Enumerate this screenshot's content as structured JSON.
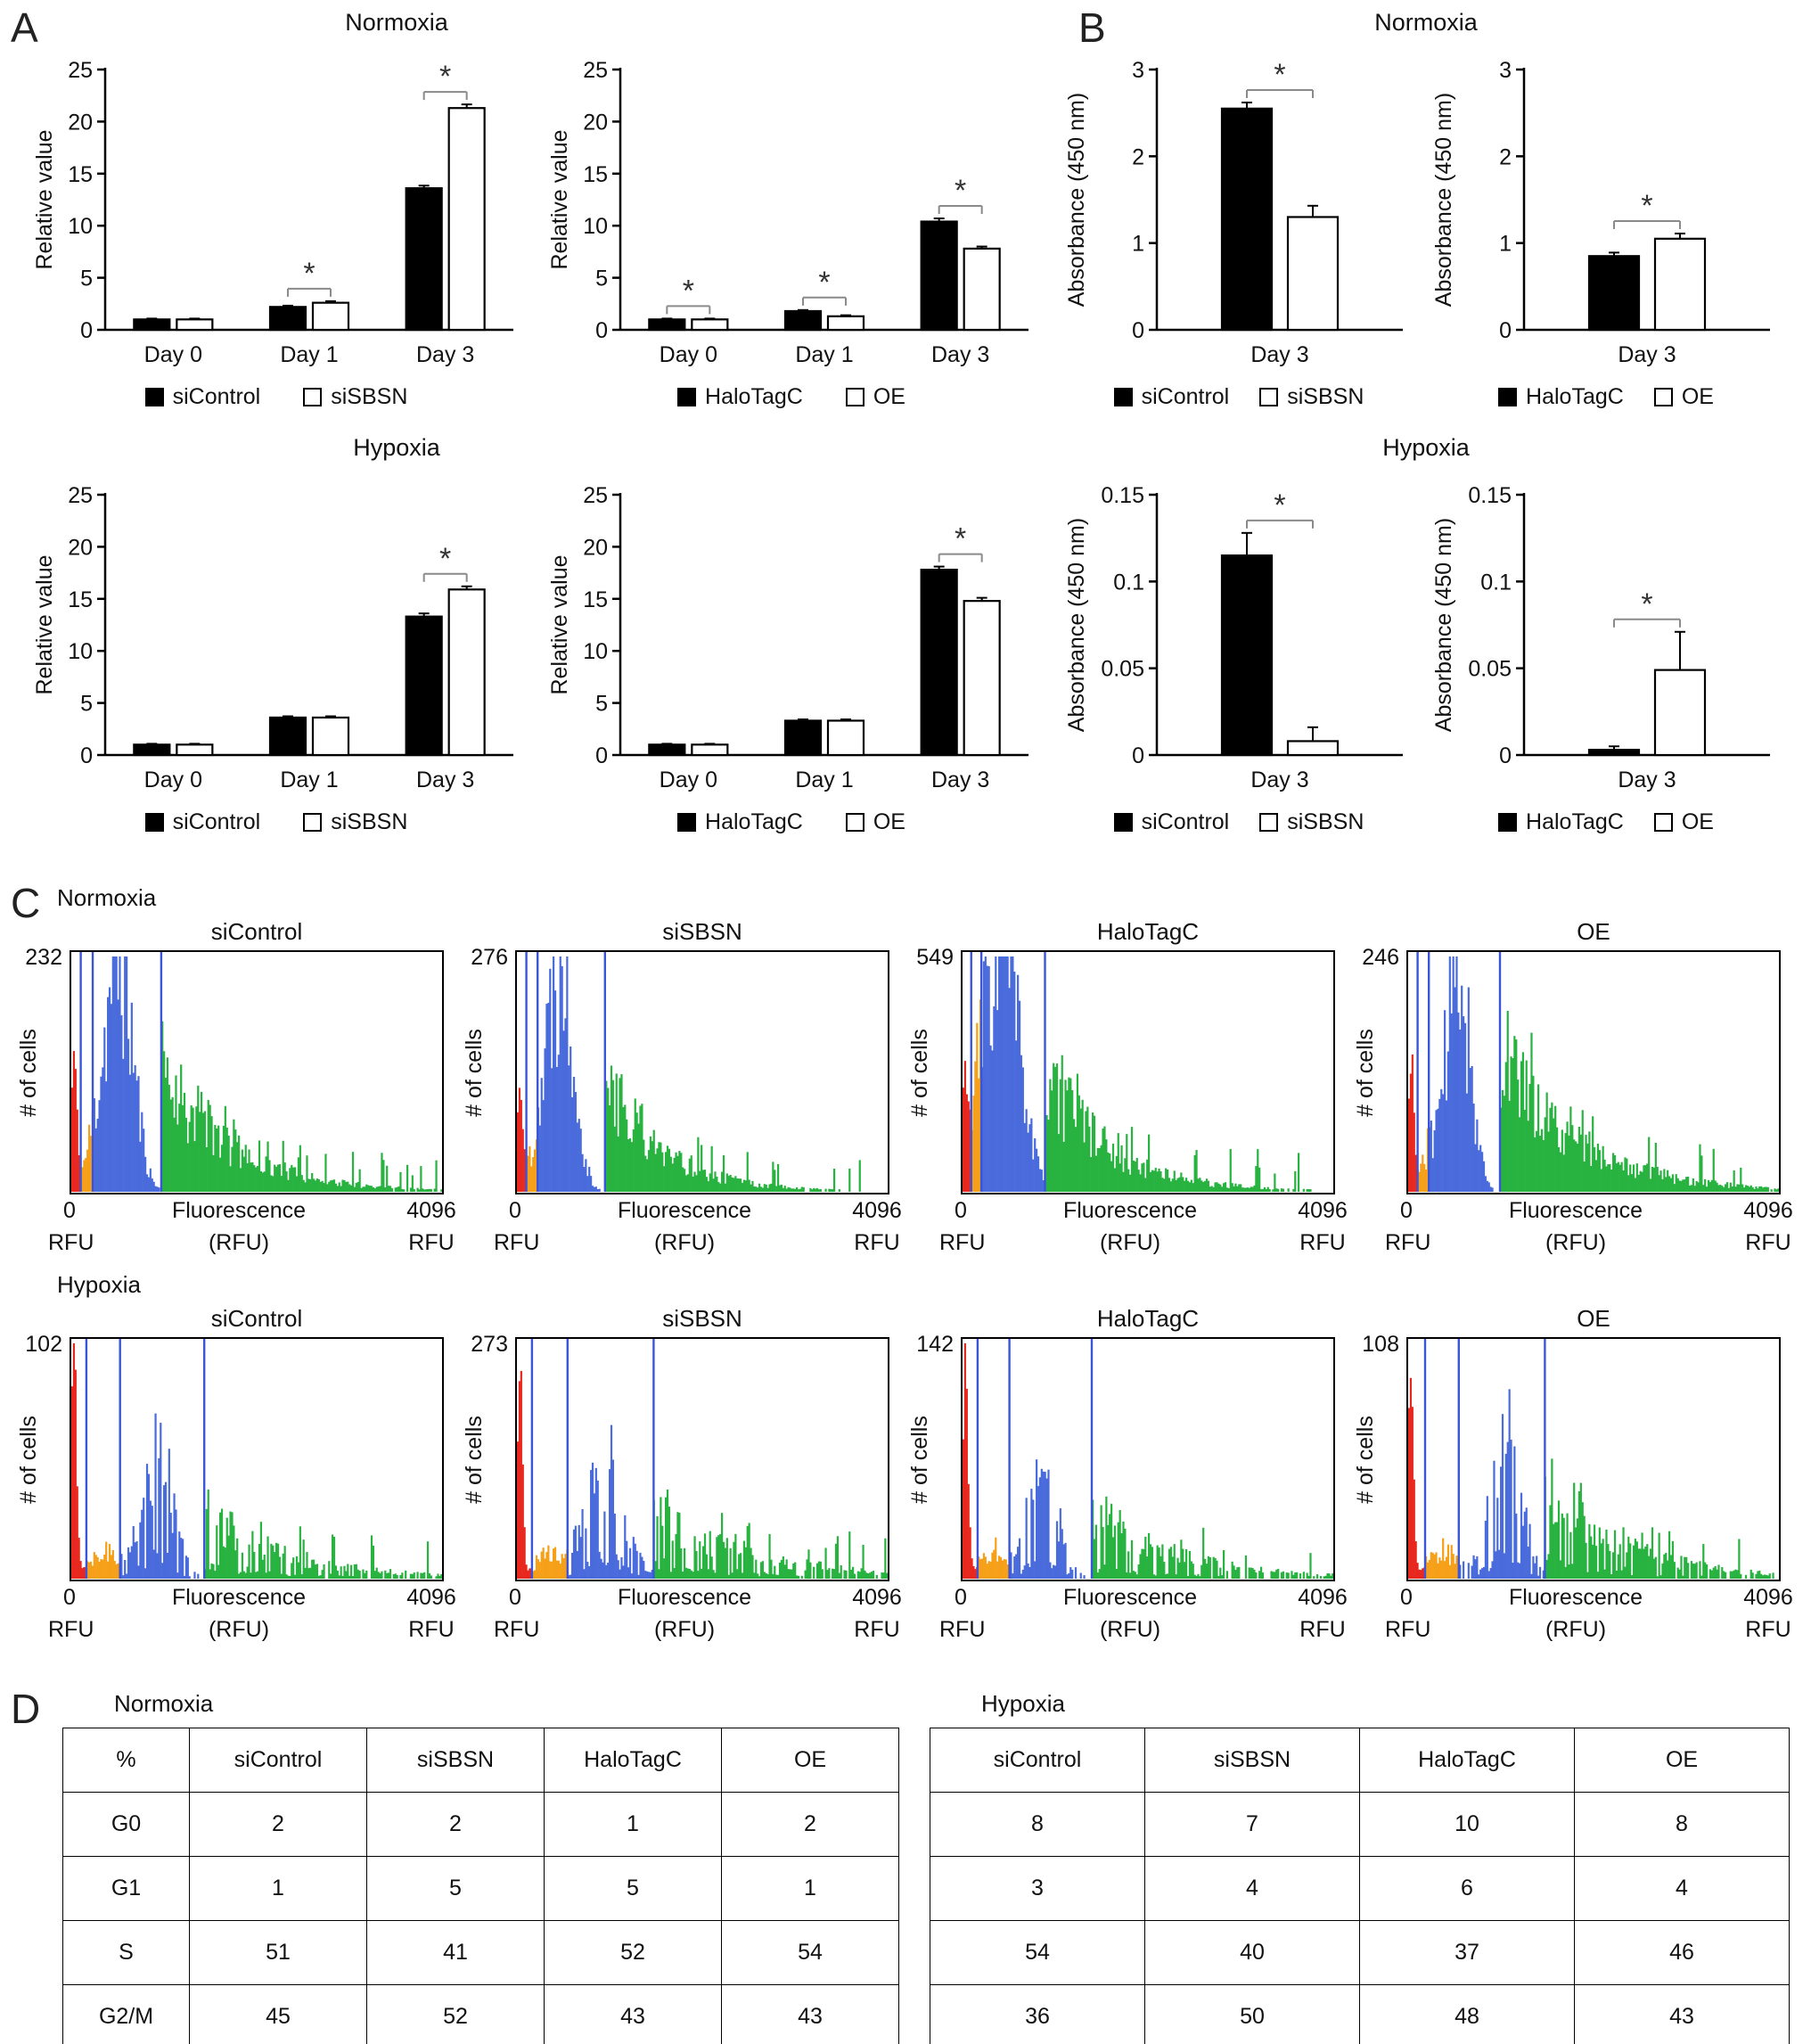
{
  "labels": {
    "panel_a": "A",
    "panel_b": "B",
    "panel_c": "C",
    "panel_d": "D",
    "normoxia": "Normoxia",
    "hypoxia": "Hypoxia"
  },
  "colors": {
    "bar_black": "#000000",
    "bar_white": "#ffffff",
    "hist_red": "#e8281e",
    "hist_orange": "#f6a01a",
    "hist_blue": "#4a6bdc",
    "hist_green": "#28b240",
    "gate_line": "#3a55d9",
    "sig_bracket": "#8a8a8a",
    "sig_star": "#333333"
  },
  "chart_data": [
    {
      "id": "a-normoxia-si",
      "type": "bar",
      "panel": "A",
      "condition": "Normoxia",
      "ylabel": "Relative value",
      "ylim": [
        0,
        25
      ],
      "yticks": [
        0,
        5,
        10,
        15,
        20,
        25
      ],
      "categories": [
        "Day 0",
        "Day 1",
        "Day 3"
      ],
      "series": [
        {
          "name": "siControl",
          "fill": "#000000",
          "values": [
            1.0,
            2.2,
            13.6
          ],
          "errors": [
            0.08,
            0.12,
            0.25
          ]
        },
        {
          "name": "siSBSN",
          "fill": "#ffffff",
          "values": [
            1.0,
            2.6,
            21.3
          ],
          "errors": [
            0.08,
            0.15,
            0.35
          ]
        }
      ],
      "sig": [
        1,
        2
      ]
    },
    {
      "id": "a-normoxia-halo",
      "type": "bar",
      "panel": "A",
      "condition": "Normoxia",
      "ylabel": "Relative value",
      "ylim": [
        0,
        25
      ],
      "yticks": [
        0,
        5,
        10,
        15,
        20,
        25
      ],
      "categories": [
        "Day 0",
        "Day 1",
        "Day 3"
      ],
      "series": [
        {
          "name": "HaloTagC",
          "fill": "#000000",
          "values": [
            1.0,
            1.8,
            10.4
          ],
          "errors": [
            0.08,
            0.1,
            0.3
          ]
        },
        {
          "name": "OE",
          "fill": "#ffffff",
          "values": [
            1.0,
            1.3,
            7.8
          ],
          "errors": [
            0.08,
            0.1,
            0.2
          ]
        }
      ],
      "sig": [
        0,
        1,
        2
      ]
    },
    {
      "id": "a-hypoxia-si",
      "type": "bar",
      "panel": "A",
      "condition": "Hypoxia",
      "ylabel": "Relative value",
      "ylim": [
        0,
        25
      ],
      "yticks": [
        0,
        5,
        10,
        15,
        20,
        25
      ],
      "categories": [
        "Day 0",
        "Day 1",
        "Day 3"
      ],
      "series": [
        {
          "name": "siControl",
          "fill": "#000000",
          "values": [
            1.0,
            3.6,
            13.3
          ],
          "errors": [
            0.08,
            0.12,
            0.3
          ]
        },
        {
          "name": "siSBSN",
          "fill": "#ffffff",
          "values": [
            1.0,
            3.6,
            15.9
          ],
          "errors": [
            0.08,
            0.12,
            0.3
          ]
        }
      ],
      "sig": [
        2
      ]
    },
    {
      "id": "a-hypoxia-halo",
      "type": "bar",
      "panel": "A",
      "condition": "Hypoxia",
      "ylabel": "Relative value",
      "ylim": [
        0,
        25
      ],
      "yticks": [
        0,
        5,
        10,
        15,
        20,
        25
      ],
      "categories": [
        "Day 0",
        "Day 1",
        "Day 3"
      ],
      "series": [
        {
          "name": "HaloTagC",
          "fill": "#000000",
          "values": [
            1.0,
            3.3,
            17.8
          ],
          "errors": [
            0.08,
            0.12,
            0.3
          ]
        },
        {
          "name": "OE",
          "fill": "#ffffff",
          "values": [
            1.0,
            3.3,
            14.8
          ],
          "errors": [
            0.08,
            0.12,
            0.3
          ]
        }
      ],
      "sig": [
        2
      ]
    },
    {
      "id": "b-normoxia-si",
      "type": "bar",
      "panel": "B",
      "condition": "Normoxia",
      "ylabel": "Absorbance (450 nm)",
      "ylim": [
        0,
        3
      ],
      "yticks": [
        0,
        1,
        2,
        3
      ],
      "ytick_labels": [
        "0",
        "1",
        "2",
        "3"
      ],
      "categories": [
        "Day 3"
      ],
      "series": [
        {
          "name": "siControl",
          "fill": "#000000",
          "values": [
            2.55
          ],
          "errors": [
            0.07
          ]
        },
        {
          "name": "siSBSN",
          "fill": "#ffffff",
          "values": [
            1.3
          ],
          "errors": [
            0.13
          ]
        }
      ],
      "sig": [
        0
      ]
    },
    {
      "id": "b-normoxia-halo",
      "type": "bar",
      "panel": "B",
      "condition": "Normoxia",
      "ylabel": "Absorbance (450 nm)",
      "ylim": [
        0,
        3
      ],
      "yticks": [
        0,
        1,
        2,
        3
      ],
      "ytick_labels": [
        "0",
        "1",
        "2",
        "3"
      ],
      "categories": [
        "Day 3"
      ],
      "series": [
        {
          "name": "HaloTagC",
          "fill": "#000000",
          "values": [
            0.85
          ],
          "errors": [
            0.04
          ]
        },
        {
          "name": "OE",
          "fill": "#ffffff",
          "values": [
            1.05
          ],
          "errors": [
            0.06
          ]
        }
      ],
      "sig": [
        0
      ]
    },
    {
      "id": "b-hypoxia-si",
      "type": "bar",
      "panel": "B",
      "condition": "Hypoxia",
      "ylabel": "Absorbance (450 nm)",
      "ylim": [
        0,
        0.15
      ],
      "yticks": [
        0,
        0.05,
        0.1,
        0.15
      ],
      "ytick_labels": [
        "0",
        "0.05",
        "0.1",
        "0.15"
      ],
      "categories": [
        "Day 3"
      ],
      "series": [
        {
          "name": "siControl",
          "fill": "#000000",
          "values": [
            0.115
          ],
          "errors": [
            0.013
          ]
        },
        {
          "name": "siSBSN",
          "fill": "#ffffff",
          "values": [
            0.008
          ],
          "errors": [
            0.008
          ]
        }
      ],
      "sig": [
        0
      ]
    },
    {
      "id": "b-hypoxia-halo",
      "type": "bar",
      "panel": "B",
      "condition": "Hypoxia",
      "ylabel": "Absorbance (450 nm)",
      "ylim": [
        0,
        0.15
      ],
      "yticks": [
        0,
        0.05,
        0.1,
        0.15
      ],
      "ytick_labels": [
        "0",
        "0.05",
        "0.1",
        "0.15"
      ],
      "categories": [
        "Day 3"
      ],
      "series": [
        {
          "name": "HaloTagC",
          "fill": "#000000",
          "values": [
            0.003
          ],
          "errors": [
            0.002
          ]
        },
        {
          "name": "OE",
          "fill": "#ffffff",
          "values": [
            0.049
          ],
          "errors": [
            0.022
          ]
        }
      ],
      "sig": [
        0
      ]
    },
    {
      "id": "c-norm-sicontrol",
      "type": "histogram",
      "condition": "Normoxia",
      "title": "siControl",
      "count_label": "232",
      "ylabel": "# of cells",
      "xlabel_line1": "Fluorescence",
      "xlabel_line2": "(RFU)",
      "x_min_label": "0",
      "x_max_label": "4096",
      "x_unit_label": "RFU",
      "xlim_rfu": [
        0,
        4096
      ],
      "gates": [
        0.03,
        0.062,
        0.245
      ],
      "red": {
        "c": 0.012,
        "s": 0.007,
        "a": 0.6
      },
      "orange": {
        "c": 0.075,
        "s": 0.03,
        "a": 0.2
      },
      "blue": {
        "c": 0.135,
        "s": 0.036,
        "a": 0.95
      },
      "green": {
        "a": 0.55,
        "decay": 0.18
      },
      "sparse": false,
      "seed": 11
    },
    {
      "id": "c-norm-sisbsn",
      "type": "histogram",
      "condition": "Normoxia",
      "title": "siSBSN",
      "count_label": "276",
      "ylabel": "# of cells",
      "xlabel_line1": "Fluorescence",
      "xlabel_line2": "(RFU)",
      "x_min_label": "0",
      "x_max_label": "4096",
      "x_unit_label": "RFU",
      "xlim_rfu": [
        0,
        4096
      ],
      "gates": [
        0.03,
        0.06,
        0.24
      ],
      "red": {
        "c": 0.012,
        "s": 0.007,
        "a": 0.5
      },
      "orange": {
        "c": 0.07,
        "s": 0.03,
        "a": 0.22
      },
      "blue": {
        "c": 0.125,
        "s": 0.033,
        "a": 0.95
      },
      "green": {
        "a": 0.5,
        "decay": 0.15
      },
      "sparse": false,
      "seed": 22
    },
    {
      "id": "c-norm-halotagc",
      "type": "histogram",
      "condition": "Normoxia",
      "title": "HaloTagC",
      "count_label": "549",
      "ylabel": "# of cells",
      "xlabel_line1": "Fluorescence",
      "xlabel_line2": "(RFU)",
      "x_min_label": "0",
      "x_max_label": "4096",
      "x_unit_label": "RFU",
      "xlim_rfu": [
        0,
        4096
      ],
      "gates": [
        0.028,
        0.055,
        0.225
      ],
      "red": {
        "c": 0.012,
        "s": 0.007,
        "a": 0.45
      },
      "orange": {
        "c": 0.06,
        "s": 0.028,
        "a": 0.3
      },
      "blue": {
        "c": 0.115,
        "s": 0.044,
        "a": 0.97
      },
      "green": {
        "a": 0.5,
        "decay": 0.17
      },
      "sparse": false,
      "seed": 33
    },
    {
      "id": "c-norm-oe",
      "type": "histogram",
      "condition": "Normoxia",
      "title": "OE",
      "count_label": "246",
      "ylabel": "# of cells",
      "xlabel_line1": "Fluorescence",
      "xlabel_line2": "(RFU)",
      "x_min_label": "0",
      "x_max_label": "4096",
      "x_unit_label": "RFU",
      "xlim_rfu": [
        0,
        4096
      ],
      "gates": [
        0.03,
        0.06,
        0.25
      ],
      "red": {
        "c": 0.012,
        "s": 0.007,
        "a": 0.62
      },
      "orange": {
        "c": 0.07,
        "s": 0.03,
        "a": 0.18
      },
      "blue": {
        "c": 0.14,
        "s": 0.031,
        "a": 0.95
      },
      "green": {
        "a": 0.6,
        "decay": 0.2
      },
      "sparse": false,
      "seed": 44
    },
    {
      "id": "c-hyp-sicontrol",
      "type": "histogram",
      "condition": "Hypoxia",
      "title": "siControl",
      "count_label": "102",
      "ylabel": "# of cells",
      "xlabel_line1": "Fluorescence",
      "xlabel_line2": "(RFU)",
      "x_min_label": "0",
      "x_max_label": "4096",
      "x_unit_label": "RFU",
      "xlim_rfu": [
        0,
        4096
      ],
      "gates": [
        0.045,
        0.135,
        0.36
      ],
      "red": {
        "c": 0.012,
        "s": 0.007,
        "a": 1.0
      },
      "orange": {
        "c": 0.09,
        "s": 0.04,
        "a": 0.12
      },
      "blue": {
        "c": 0.235,
        "s": 0.04,
        "a": 0.55
      },
      "green": {
        "a": 0.28,
        "decay": 0.22
      },
      "sparse": true,
      "seed": 55
    },
    {
      "id": "c-hyp-sisbsn",
      "type": "histogram",
      "condition": "Hypoxia",
      "title": "siSBSN",
      "count_label": "273",
      "ylabel": "# of cells",
      "xlabel_line1": "Fluorescence",
      "xlabel_line2": "(RFU)",
      "x_min_label": "0",
      "x_max_label": "4096",
      "x_unit_label": "RFU",
      "xlim_rfu": [
        0,
        4096
      ],
      "gates": [
        0.045,
        0.14,
        0.37
      ],
      "red": {
        "c": 0.012,
        "s": 0.007,
        "a": 1.0
      },
      "orange": {
        "c": 0.095,
        "s": 0.045,
        "a": 0.1
      },
      "blue": {
        "c": 0.245,
        "s": 0.05,
        "a": 0.5
      },
      "green": {
        "a": 0.3,
        "decay": 0.25
      },
      "sparse": true,
      "seed": 66
    },
    {
      "id": "c-hyp-halotagc",
      "type": "histogram",
      "condition": "Hypoxia",
      "title": "HaloTagC",
      "count_label": "142",
      "ylabel": "# of cells",
      "xlabel_line1": "Fluorescence",
      "xlabel_line2": "(RFU)",
      "x_min_label": "0",
      "x_max_label": "4096",
      "x_unit_label": "RFU",
      "xlim_rfu": [
        0,
        4096
      ],
      "gates": [
        0.045,
        0.13,
        0.35
      ],
      "red": {
        "c": 0.012,
        "s": 0.007,
        "a": 1.0
      },
      "orange": {
        "c": 0.09,
        "s": 0.04,
        "a": 0.12
      },
      "blue": {
        "c": 0.22,
        "s": 0.04,
        "a": 0.45
      },
      "green": {
        "a": 0.28,
        "decay": 0.22
      },
      "sparse": true,
      "seed": 77
    },
    {
      "id": "c-hyp-oe",
      "type": "histogram",
      "condition": "Hypoxia",
      "title": "OE",
      "count_label": "108",
      "ylabel": "# of cells",
      "xlabel_line1": "Fluorescence",
      "xlabel_line2": "(RFU)",
      "x_min_label": "0",
      "x_max_label": "4096",
      "x_unit_label": "RFU",
      "xlim_rfu": [
        0,
        4096
      ],
      "gates": [
        0.05,
        0.14,
        0.37
      ],
      "red": {
        "c": 0.012,
        "s": 0.007,
        "a": 0.95
      },
      "orange": {
        "c": 0.095,
        "s": 0.04,
        "a": 0.12
      },
      "blue": {
        "c": 0.265,
        "s": 0.04,
        "a": 0.6
      },
      "green": {
        "a": 0.42,
        "decay": 0.2
      },
      "sparse": true,
      "seed": 88
    },
    {
      "id": "d-normoxia",
      "type": "table",
      "title": "Normoxia",
      "headers": [
        "%",
        "siControl",
        "siSBSN",
        "HaloTagC",
        "OE"
      ],
      "rows": [
        [
          "G0",
          "2",
          "2",
          "1",
          "2"
        ],
        [
          "G1",
          "1",
          "5",
          "5",
          "1"
        ],
        [
          "S",
          "51",
          "41",
          "52",
          "54"
        ],
        [
          "G2/M",
          "45",
          "52",
          "43",
          "43"
        ]
      ]
    },
    {
      "id": "d-hypoxia",
      "type": "table",
      "title": "Hypoxia",
      "headers": [
        "siControl",
        "siSBSN",
        "HaloTagC",
        "OE"
      ],
      "rows": [
        [
          "8",
          "7",
          "10",
          "8"
        ],
        [
          "3",
          "4",
          "6",
          "4"
        ],
        [
          "54",
          "40",
          "37",
          "46"
        ],
        [
          "36",
          "50",
          "48",
          "43"
        ]
      ]
    }
  ]
}
